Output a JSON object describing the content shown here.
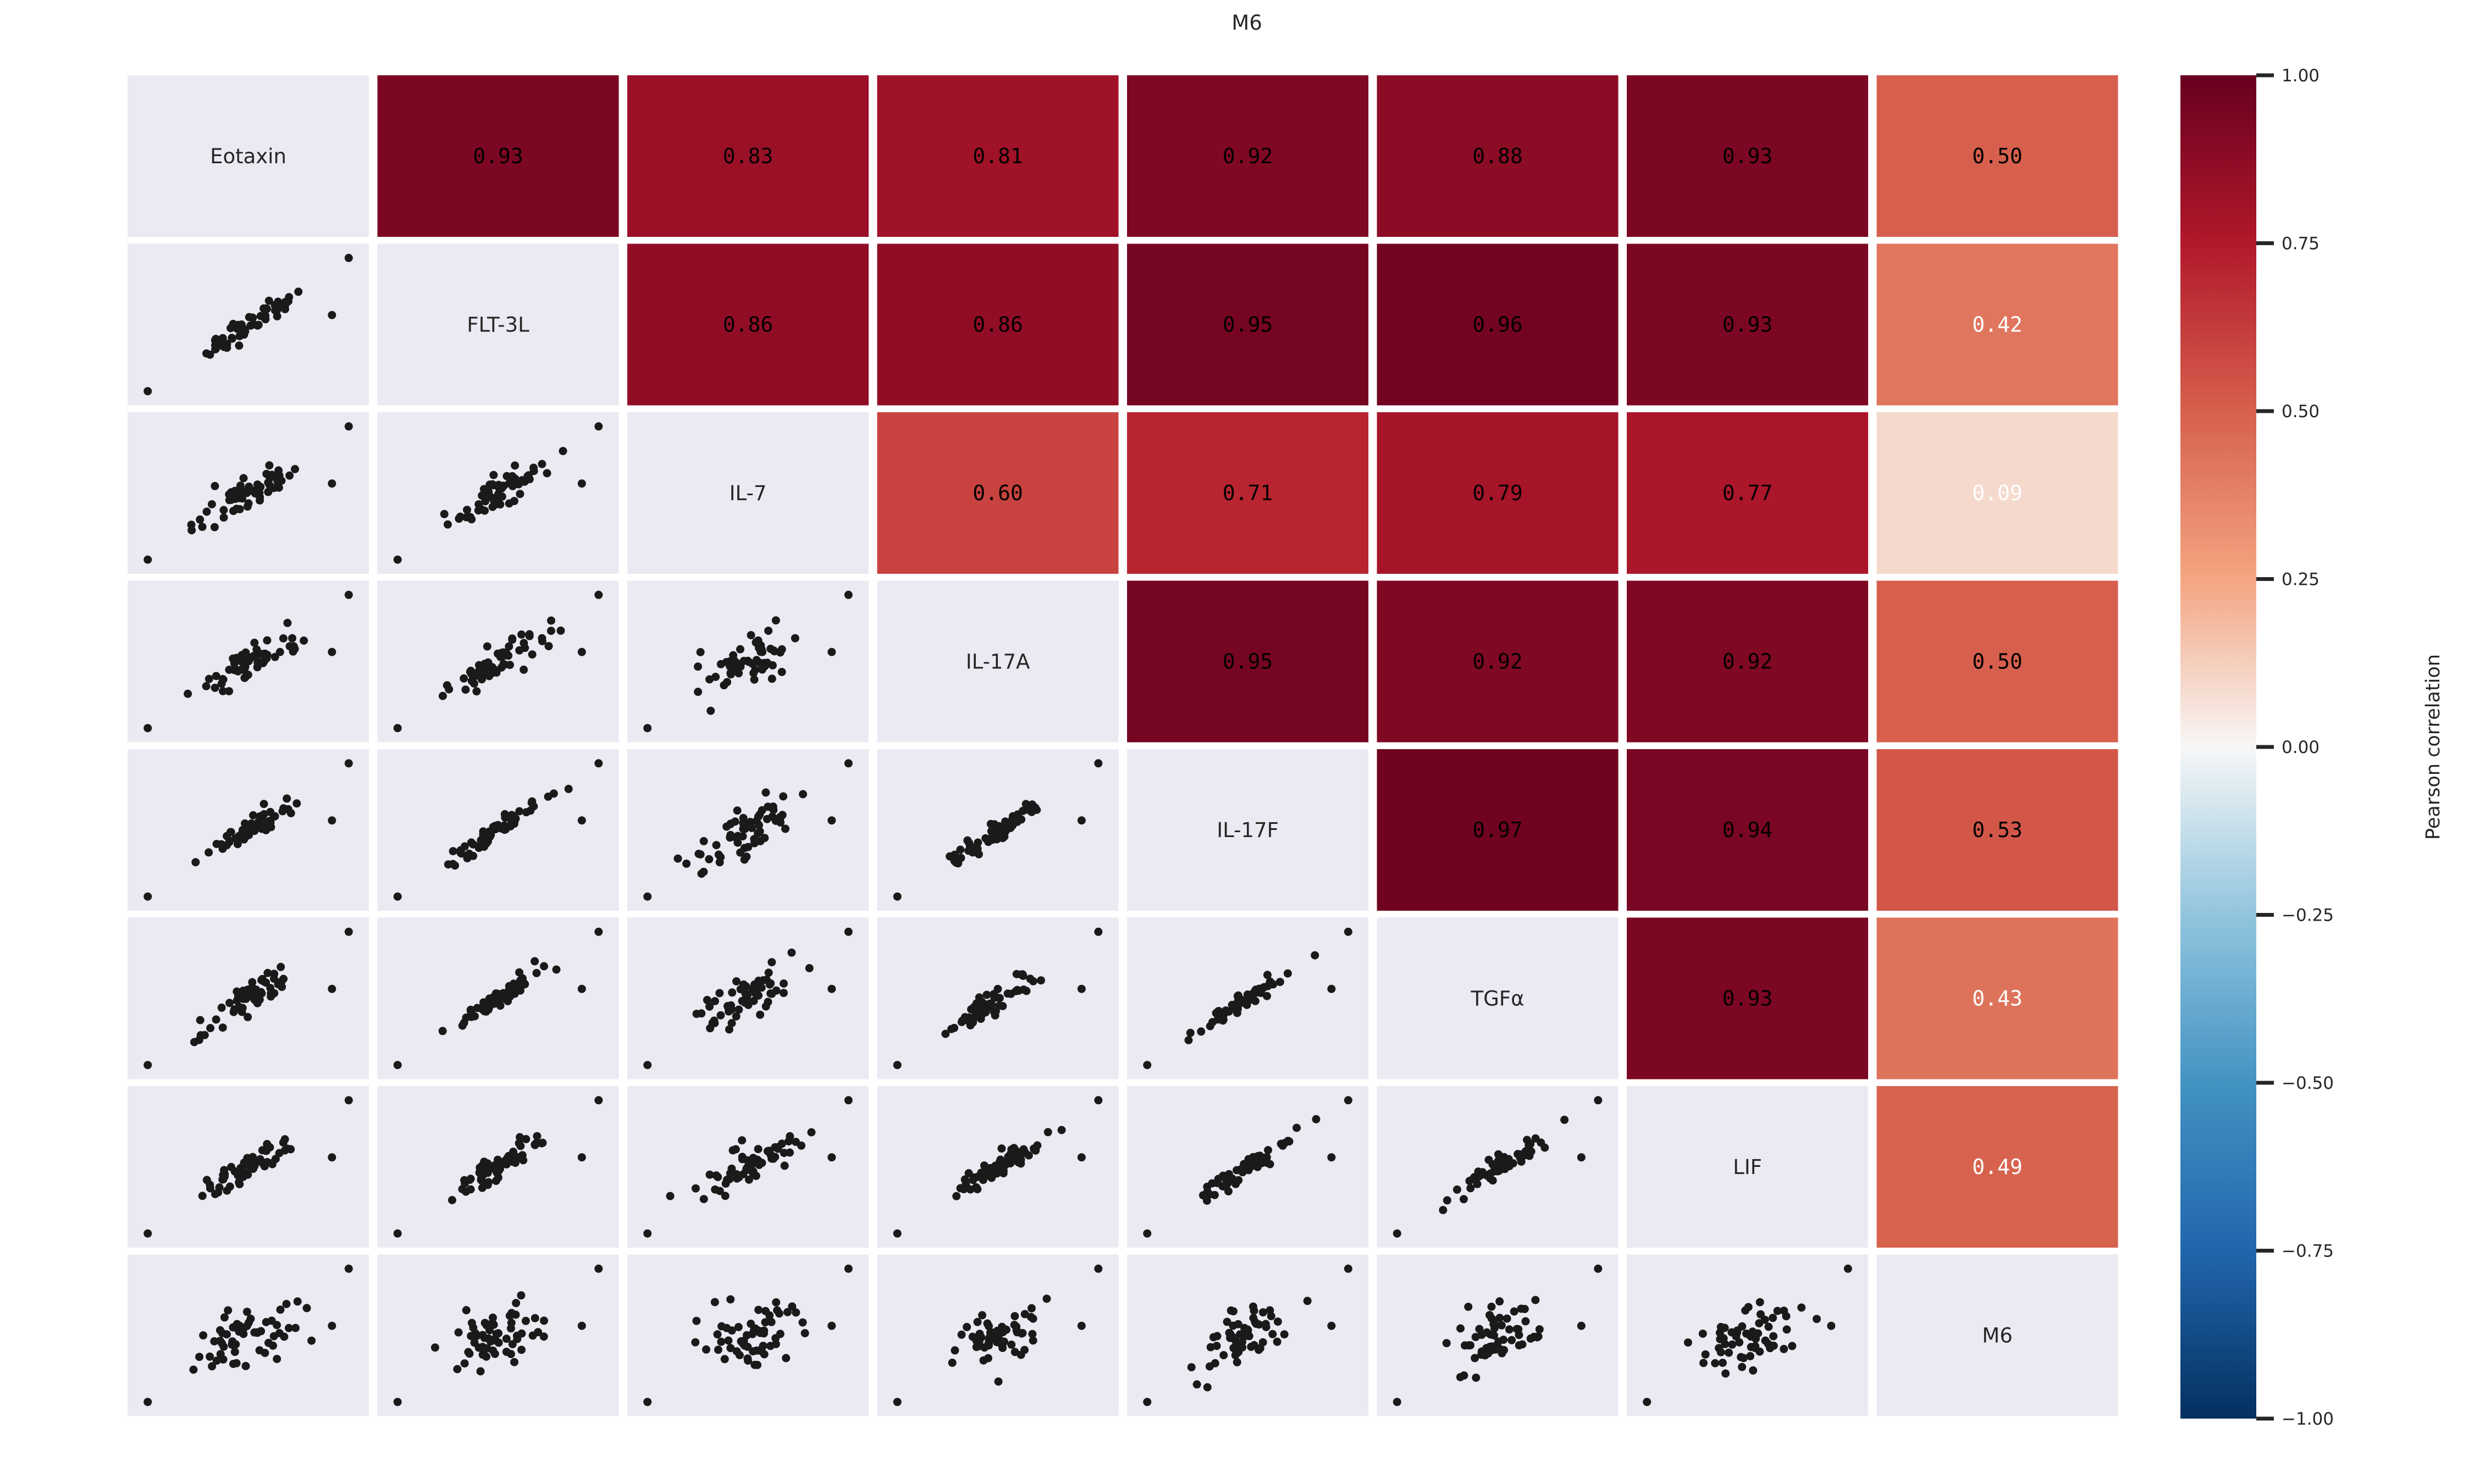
{
  "chart_data": {
    "type": "heatmap",
    "title": "M6",
    "variables": [
      "Eotaxin",
      "FLT-3L",
      "IL-7",
      "IL-17A",
      "IL-17F",
      "TGFα",
      "LIF",
      "M6"
    ],
    "correlations": [
      [
        1.0,
        0.93,
        0.83,
        0.81,
        0.92,
        0.88,
        0.93,
        0.5
      ],
      [
        0.93,
        1.0,
        0.86,
        0.86,
        0.95,
        0.96,
        0.93,
        0.42
      ],
      [
        0.83,
        0.86,
        1.0,
        0.6,
        0.71,
        0.79,
        0.77,
        0.09
      ],
      [
        0.81,
        0.86,
        0.6,
        1.0,
        0.95,
        0.92,
        0.92,
        0.5
      ],
      [
        0.92,
        0.95,
        0.71,
        0.95,
        1.0,
        0.97,
        0.94,
        0.53
      ],
      [
        0.88,
        0.96,
        0.79,
        0.92,
        0.97,
        1.0,
        0.93,
        0.43
      ],
      [
        0.93,
        0.93,
        0.77,
        0.92,
        0.94,
        0.93,
        1.0,
        0.49
      ],
      [
        0.5,
        0.42,
        0.09,
        0.5,
        0.53,
        0.43,
        0.49,
        1.0
      ]
    ],
    "upper_labels": [
      [
        "0.93",
        "0.83",
        "0.81",
        "0.92",
        "0.88",
        "0.93",
        "0.50"
      ],
      [
        "0.86",
        "0.86",
        "0.95",
        "0.96",
        "0.93",
        "0.42"
      ],
      [
        "0.60",
        "0.71",
        "0.79",
        "0.77",
        "0.09"
      ],
      [
        "0.95",
        "0.92",
        "0.92",
        "0.50"
      ],
      [
        "0.97",
        "0.94",
        "0.53"
      ],
      [
        "0.93",
        "0.43"
      ],
      [
        "0.49"
      ]
    ],
    "lower_panels": "pairwise scatter",
    "colorbar": {
      "label": "Pearson correlation",
      "range": [
        -1.0,
        1.0
      ],
      "ticks": [
        "1.00",
        "0.75",
        "0.50",
        "0.25",
        "0.00",
        "−0.25",
        "−0.50",
        "−0.75",
        "−1.00"
      ],
      "colormap": "RdBu_r"
    },
    "panel_bg": "#eaeaf2",
    "point_color": "#1a1a1a"
  }
}
